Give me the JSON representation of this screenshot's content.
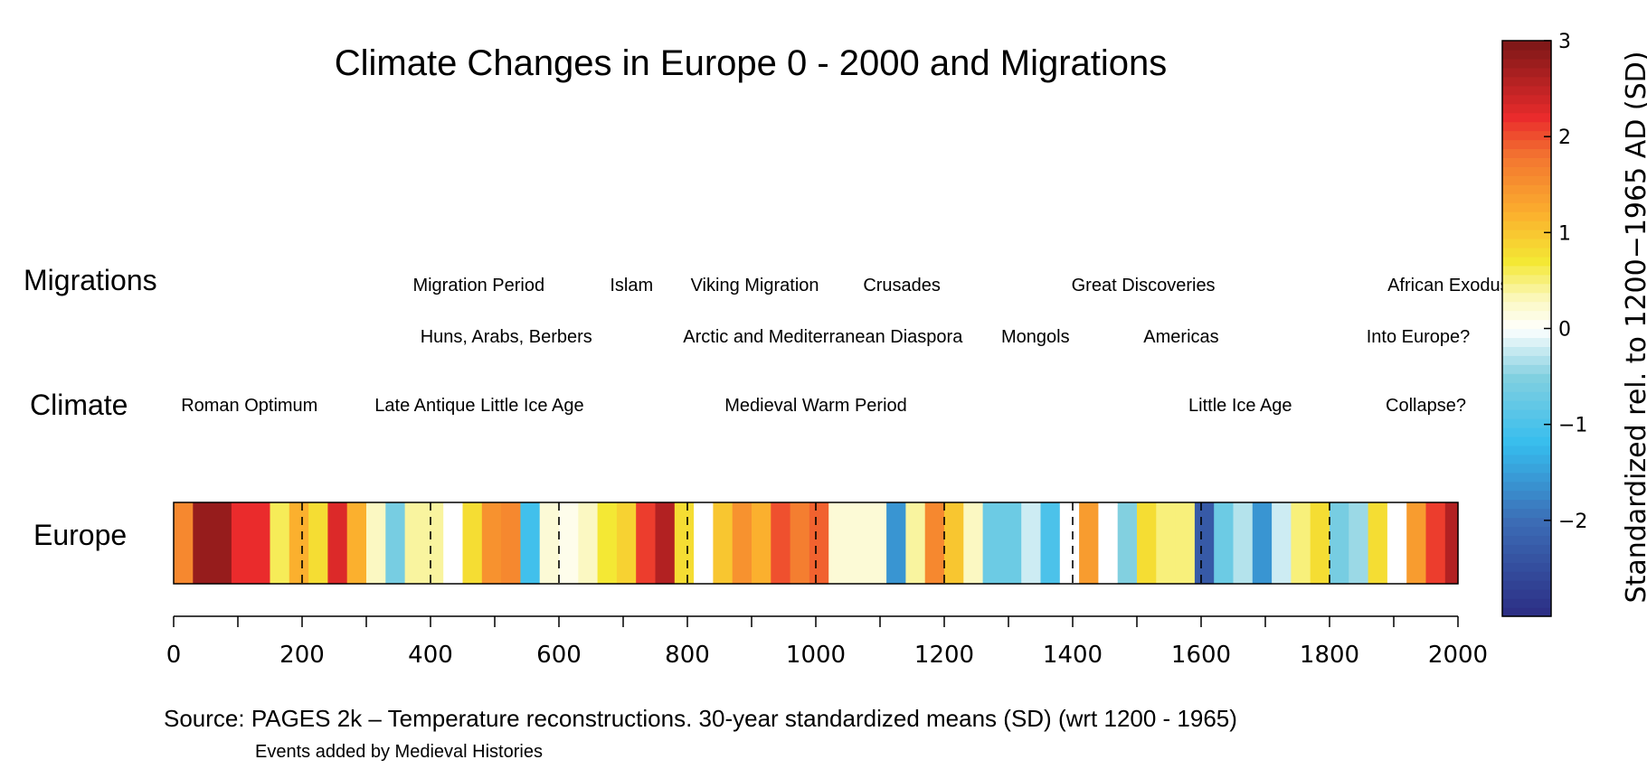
{
  "chart_data": {
    "type": "heatmap",
    "title": "Climate Changes in Europe 0 - 2000 and Migrations",
    "row_labels": {
      "migrations": "Migrations",
      "climate": "Climate",
      "europe": "Europe"
    },
    "x_axis": {
      "min": 0,
      "max": 2000,
      "ticks": [
        0,
        200,
        400,
        600,
        800,
        1000,
        1200,
        1400,
        1600,
        1800,
        2000
      ],
      "minor_step": 100,
      "label": ""
    },
    "x": [
      0,
      30,
      60,
      90,
      120,
      150,
      180,
      210,
      240,
      270,
      300,
      330,
      360,
      390,
      420,
      450,
      480,
      510,
      540,
      570,
      600,
      630,
      660,
      690,
      720,
      750,
      780,
      810,
      840,
      870,
      900,
      930,
      960,
      990,
      1020,
      1050,
      1080,
      1110,
      1140,
      1170,
      1200,
      1230,
      1260,
      1290,
      1320,
      1350,
      1380,
      1410,
      1440,
      1470,
      1500,
      1530,
      1560,
      1590,
      1620,
      1650,
      1680,
      1710,
      1740,
      1770,
      1800,
      1830,
      1860,
      1890,
      1920,
      1950,
      1980
    ],
    "values": [
      1.6,
      2.8,
      2.8,
      2.2,
      2.2,
      0.6,
      1.2,
      0.8,
      2.3,
      1.2,
      0.3,
      -0.6,
      0.4,
      0.4,
      0.0,
      0.8,
      1.5,
      1.6,
      -1.1,
      0.2,
      0.1,
      0.3,
      0.7,
      0.9,
      2.1,
      2.6,
      0.8,
      0.0,
      1.0,
      1.5,
      1.2,
      2.0,
      1.7,
      1.9,
      0.2,
      0.2,
      0.2,
      -1.6,
      0.4,
      1.6,
      1.0,
      0.3,
      -0.7,
      -0.7,
      -0.2,
      -1.0,
      0.0,
      1.4,
      0.0,
      -0.5,
      0.8,
      0.5,
      0.5,
      -2.3,
      -0.7,
      -0.3,
      -1.6,
      -0.2,
      0.5,
      0.8,
      -0.6,
      -0.4,
      0.8,
      0.0,
      1.4,
      2.1,
      2.6
    ],
    "color_scale": {
      "min": -3,
      "max": 3,
      "ticks": [
        -2,
        -1,
        0,
        1,
        2,
        3
      ],
      "tick_labels": [
        "−2",
        "−1",
        "0",
        "1",
        "2",
        "3"
      ],
      "label": "Standardized rel. to 1200−1965 AD (SD)"
    },
    "colors": {
      "-3": "#2c2d84",
      "-2": "#3c6db6",
      "-1.2": "#36bdee",
      "-0.5": "#82d0e0",
      "0": "#ffffff",
      "0.3": "#fbf8c2",
      "0.7": "#f4e834",
      "1.2": "#fbb02e",
      "1.8": "#f37430",
      "2.2": "#ea2b2c",
      "3": "#7a1717"
    },
    "migrations": [
      {
        "text": "Migration Period",
        "year": 475
      },
      {
        "text": "Islam",
        "year": 713
      },
      {
        "text": "Viking Migration",
        "year": 905
      },
      {
        "text": "Crusades",
        "year": 1134
      },
      {
        "text": "Great Discoveries",
        "year": 1510
      },
      {
        "text": "African Exodus",
        "year": 1985
      }
    ],
    "migrations_second": [
      {
        "text": "Huns, Arabs, Berbers",
        "year": 518
      },
      {
        "text": "Arctic and Mediterranean Diaspora",
        "year": 1011
      },
      {
        "text": "Mongols",
        "year": 1342
      },
      {
        "text": "Americas",
        "year": 1569
      },
      {
        "text": "Into Europe?",
        "year": 1938
      }
    ],
    "climate": [
      {
        "text": "Roman Optimum",
        "year": 118
      },
      {
        "text": "Late Antique Little Ice Age",
        "year": 476
      },
      {
        "text": "Medieval Warm Period",
        "year": 1000
      },
      {
        "text": "Little Ice Age",
        "year": 1661
      },
      {
        "text": "Collapse?",
        "year": 1950
      }
    ]
  },
  "footer": {
    "source": "Source: PAGES 2k – Temperature reconstructions. 30-year standardized means (SD) (wrt 1200 - 1965)",
    "note": "Events added by Medieval Histories"
  }
}
